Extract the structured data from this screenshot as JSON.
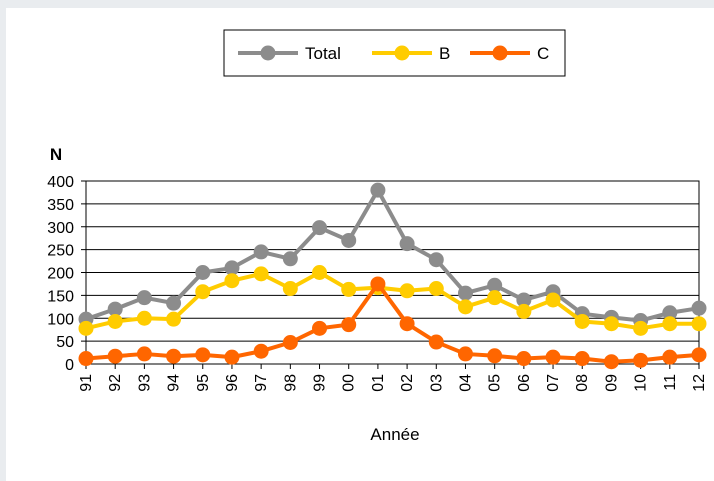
{
  "chart_data": {
    "type": "line",
    "categories": [
      "91",
      "92",
      "93",
      "94",
      "95",
      "96",
      "97",
      "98",
      "99",
      "00",
      "01",
      "02",
      "03",
      "04",
      "05",
      "06",
      "07",
      "08",
      "09",
      "10",
      "11",
      "12"
    ],
    "series": [
      {
        "name": "Total",
        "color": "#8c8c8c",
        "values": [
          98,
          120,
          145,
          133,
          200,
          210,
          245,
          230,
          298,
          270,
          380,
          263,
          228,
          155,
          172,
          140,
          158,
          110,
          102,
          95,
          112,
          122
        ]
      },
      {
        "name": "B",
        "color": "#ffcc00",
        "values": [
          78,
          93,
          100,
          98,
          158,
          182,
          197,
          165,
          200,
          163,
          167,
          160,
          165,
          125,
          145,
          115,
          140,
          93,
          88,
          78,
          88,
          88
        ]
      },
      {
        "name": "C",
        "color": "#ff6600",
        "values": [
          12,
          17,
          22,
          17,
          20,
          15,
          28,
          47,
          78,
          86,
          175,
          88,
          48,
          22,
          18,
          12,
          15,
          12,
          5,
          8,
          15,
          20
        ]
      }
    ],
    "ylabel": "N",
    "xlabel": "Année",
    "ylim": [
      0,
      400
    ],
    "yticks": [
      0,
      50,
      100,
      150,
      200,
      250,
      300,
      350,
      400
    ],
    "grid": true,
    "legend_position": "top-center"
  }
}
